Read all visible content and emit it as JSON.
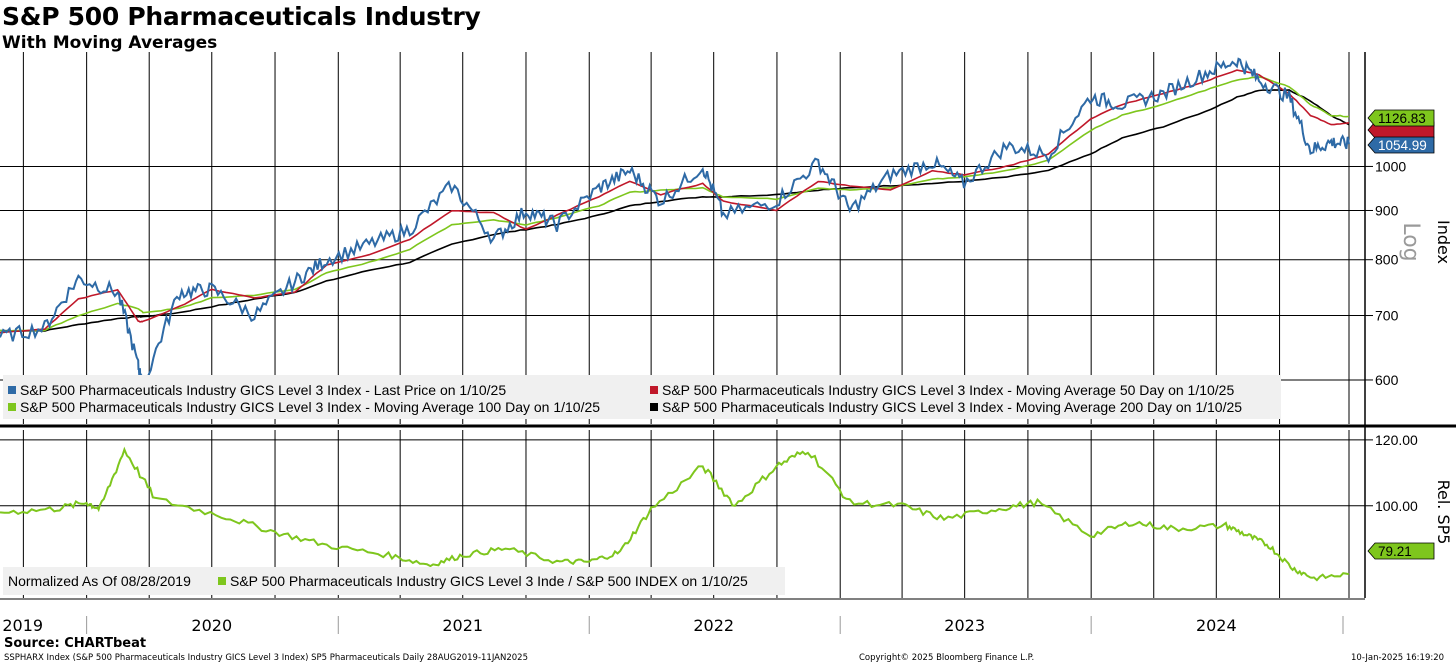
{
  "header": {
    "title": "S&P 500 Pharmaceuticals Industry",
    "subtitle": "With Moving Averages"
  },
  "footer": {
    "source": "Source: CHARTbeat",
    "left": "SSPHARX Index (S&P 500 Pharmaceuticals Industry GICS Level 3 Index) SP5 Pharmaceuticals  Daily 28AUG2019-11JAN2025",
    "copyright": "Copyright© 2025 Bloomberg Finance L.P.",
    "timestamp": "10-Jan-2025 16:19:20"
  },
  "x_axis": {
    "year_labels": [
      "2019",
      "2020",
      "2021",
      "2022",
      "2023",
      "2024"
    ]
  },
  "colors": {
    "price": "#2e6aa6",
    "ma50": "#c0182a",
    "ma100": "#7ec61d",
    "ma200": "#000000",
    "rel": "#7ec61d"
  },
  "chart_data": [
    {
      "type": "line",
      "title": "S&P 500 Pharmaceuticals Industry",
      "subtitle": "With Moving Averages",
      "ylabel": "Index",
      "scale": "log",
      "scale_label": "Log",
      "x_range": [
        "2019-08-28",
        "2025-01-10"
      ],
      "ylim": [
        540,
        1290
      ],
      "y_ticks": [
        600,
        700,
        800,
        900,
        1000
      ],
      "grid": true,
      "legend_position": "bottom-left",
      "x": [
        "2019-08-28",
        "2019-11-01",
        "2019-12-20",
        "2020-02-15",
        "2020-03-16",
        "2020-03-23",
        "2020-05-15",
        "2020-07-01",
        "2020-09-01",
        "2020-10-30",
        "2020-12-15",
        "2021-02-15",
        "2021-04-15",
        "2021-06-15",
        "2021-08-15",
        "2021-10-01",
        "2021-11-15",
        "2022-01-15",
        "2022-03-01",
        "2022-04-15",
        "2022-06-15",
        "2022-07-15",
        "2022-09-30",
        "2022-11-30",
        "2023-01-15",
        "2023-03-15",
        "2023-05-15",
        "2023-06-30",
        "2023-08-31",
        "2023-10-31",
        "2023-12-31",
        "2024-02-15",
        "2024-04-15",
        "2024-06-15",
        "2024-07-31",
        "2024-09-01",
        "2024-10-15",
        "2024-11-15",
        "2024-12-15",
        "2025-01-10"
      ],
      "series": [
        {
          "name": "S&P 500 Pharmaceuticals Industry GICS Level 3 Index - Last Price on 1/10/25",
          "last_value": 1054.99,
          "values": [
            665,
            680,
            765,
            740,
            620,
            590,
            740,
            745,
            700,
            760,
            800,
            830,
            860,
            955,
            840,
            900,
            870,
            950,
            990,
            920,
            1000,
            890,
            920,
            1010,
            900,
            980,
            1010,
            960,
            1050,
            1030,
            1180,
            1160,
            1190,
            1250,
            1290,
            1230,
            1180,
            1040,
            1060,
            1055
          ]
        },
        {
          "name": "S&P 500 Pharmaceuticals Industry GICS Level 3 Index - Moving Average 50 Day on 1/10/25",
          "last_value": 1110,
          "values": [
            672,
            678,
            728,
            745,
            690,
            690,
            715,
            745,
            730,
            740,
            790,
            810,
            840,
            900,
            895,
            860,
            890,
            930,
            965,
            935,
            960,
            920,
            900,
            965,
            955,
            945,
            990,
            980,
            1000,
            1030,
            1120,
            1160,
            1190,
            1225,
            1260,
            1245,
            1190,
            1130,
            1105,
            1110
          ]
        },
        {
          "name": "S&P 500 Pharmaceuticals Industry GICS Level 3 Index - Moving Average 100 Day on 1/10/25",
          "last_value": 1126.83,
          "values": [
            675,
            676,
            700,
            720,
            712,
            705,
            712,
            730,
            735,
            745,
            775,
            795,
            820,
            870,
            880,
            870,
            885,
            910,
            940,
            945,
            950,
            930,
            925,
            950,
            945,
            950,
            970,
            975,
            990,
            1015,
            1090,
            1130,
            1160,
            1200,
            1230,
            1240,
            1210,
            1160,
            1130,
            1127
          ]
        },
        {
          "name": "S&P 500 Pharmaceuticals Industry GICS Level 3 Index - Moving Average 200 Day on 1/10/25",
          "last_value": 1105,
          "values": [
            675,
            675,
            685,
            695,
            698,
            698,
            705,
            715,
            728,
            740,
            760,
            780,
            795,
            830,
            850,
            860,
            870,
            890,
            910,
            920,
            930,
            930,
            935,
            945,
            950,
            955,
            960,
            965,
            975,
            990,
            1030,
            1070,
            1100,
            1140,
            1180,
            1200,
            1200,
            1170,
            1130,
            1105
          ]
        }
      ],
      "axis_value_labels": [
        1126.83,
        1054.99
      ],
      "legend": [
        "S&P 500 Pharmaceuticals Industry GICS Level 3 Index - Last Price on 1/10/25",
        "S&P 500 Pharmaceuticals Industry GICS Level 3 Index - Moving Average 50 Day on 1/10/25",
        "S&P 500 Pharmaceuticals Industry GICS Level 3 Index - Moving Average 100 Day on 1/10/25",
        "S&P 500 Pharmaceuticals Industry GICS Level 3 Index - Moving Average 200 Day on 1/10/25"
      ]
    },
    {
      "type": "line",
      "ylabel": "Rel. SP5",
      "y_ticks_labels": [
        "120.00",
        "100.00"
      ],
      "y_ticks": [
        120,
        100
      ],
      "ylim": [
        72,
        123
      ],
      "grid": true,
      "legend_position": "bottom-left",
      "x": [
        "2019-08-28",
        "2019-11-15",
        "2020-01-01",
        "2020-01-20",
        "2020-02-25",
        "2020-04-10",
        "2020-07-15",
        "2020-10-01",
        "2020-12-15",
        "2021-03-15",
        "2021-05-15",
        "2021-07-01",
        "2021-09-01",
        "2021-11-15",
        "2022-01-01",
        "2022-02-15",
        "2022-04-01",
        "2022-06-15",
        "2022-08-01",
        "2022-09-30",
        "2022-11-15",
        "2023-01-15",
        "2023-04-01",
        "2023-06-01",
        "2023-08-15",
        "2023-10-15",
        "2023-12-31",
        "2024-03-01",
        "2024-05-01",
        "2024-07-15",
        "2024-08-15",
        "2024-09-15",
        "2024-10-20",
        "2024-11-20",
        "2025-01-10"
      ],
      "series": [
        {
          "name": "S&P 500 Pharmaceuticals Industry GICS Level 3 Inde / S&P 500 INDEX on 1/10/25",
          "last_value": 79.21,
          "values": [
            98,
            99,
            101,
            99,
            117,
            102,
            97,
            92,
            88,
            85,
            82,
            85,
            87,
            83,
            83,
            86,
            99,
            112,
            100,
            112,
            117,
            101,
            100,
            96,
            99,
            101,
            91,
            95,
            93,
            94,
            91,
            88,
            81,
            78,
            79.21
          ]
        }
      ],
      "legend": [
        "Normalized As Of 08/28/2019",
        "S&P 500 Pharmaceuticals Industry GICS Level 3 Inde / S&P 500 INDEX on 1/10/25"
      ],
      "axis_value_labels": [
        79.21
      ]
    }
  ]
}
